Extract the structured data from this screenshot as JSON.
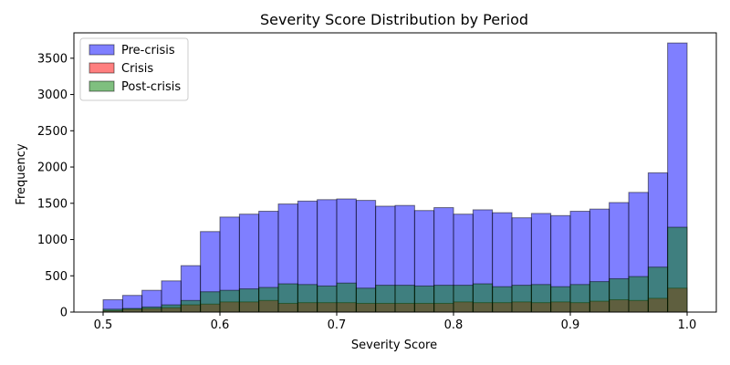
{
  "chart_data": {
    "type": "bar",
    "title": "Severity Score Distribution by Period",
    "xlabel": "Severity Score",
    "ylabel": "Frequency",
    "xlim": [
      0.475,
      1.025
    ],
    "ylim": [
      0,
      3850
    ],
    "x_ticks": [
      0.5,
      0.6,
      0.7,
      0.8,
      0.9,
      1.0
    ],
    "x_tick_labels": [
      "0.5",
      "0.6",
      "0.7",
      "0.8",
      "0.9",
      "1.0"
    ],
    "y_ticks": [
      0,
      500,
      1000,
      1500,
      2000,
      2500,
      3000,
      3500
    ],
    "y_tick_labels": [
      "0",
      "500",
      "1000",
      "1500",
      "2000",
      "2500",
      "3000",
      "3500"
    ],
    "bin_edges": [
      0.5,
      0.5167,
      0.5333,
      0.55,
      0.5667,
      0.5833,
      0.6,
      0.6167,
      0.6333,
      0.65,
      0.6667,
      0.6833,
      0.7,
      0.7167,
      0.7333,
      0.75,
      0.7667,
      0.7833,
      0.8,
      0.8167,
      0.8333,
      0.85,
      0.8667,
      0.8833,
      0.9,
      0.9167,
      0.9333,
      0.95,
      0.9667,
      0.9833,
      1.0
    ],
    "legend_position": "top-left",
    "series": [
      {
        "name": "Pre-crisis",
        "color": "#0000ff",
        "values": [
          170,
          230,
          300,
          430,
          640,
          1110,
          1310,
          1350,
          1390,
          1490,
          1530,
          1550,
          1560,
          1540,
          1460,
          1470,
          1400,
          1440,
          1350,
          1410,
          1370,
          1300,
          1360,
          1330,
          1390,
          1420,
          1510,
          1650,
          1920,
          3710
        ]
      },
      {
        "name": "Crisis",
        "color": "#ff0000",
        "values": [
          20,
          40,
          50,
          60,
          100,
          110,
          140,
          140,
          160,
          120,
          130,
          130,
          130,
          120,
          120,
          120,
          120,
          120,
          140,
          130,
          130,
          140,
          130,
          140,
          130,
          150,
          170,
          160,
          190,
          330
        ]
      },
      {
        "name": "Post-crisis",
        "color": "#008000",
        "values": [
          40,
          50,
          70,
          100,
          160,
          280,
          300,
          320,
          340,
          390,
          380,
          360,
          400,
          330,
          370,
          370,
          360,
          370,
          370,
          390,
          350,
          370,
          380,
          350,
          380,
          420,
          460,
          490,
          620,
          1170
        ]
      }
    ]
  }
}
